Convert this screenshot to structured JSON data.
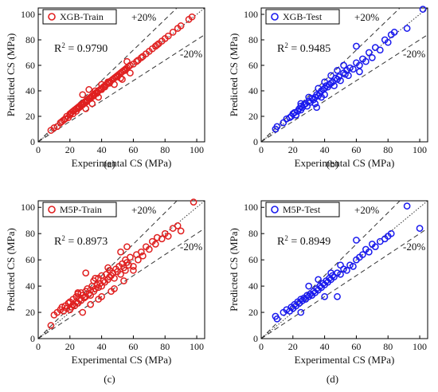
{
  "figure": {
    "panels": [
      {
        "id": "a",
        "caption": "(a)",
        "legend": "XGB-Train",
        "color": "#e02020",
        "r2": {
          "prefix": "R",
          "sup": "2",
          "value": " = 0.9790"
        },
        "band_upper": "+20%",
        "band_lower": "-20%"
      },
      {
        "id": "b",
        "caption": "(b)",
        "legend": "XGB-Test",
        "color": "#1a1aee",
        "r2": {
          "prefix": "R",
          "sup": "2",
          "value": " = 0.9485"
        },
        "band_upper": "+20%",
        "band_lower": "-20%"
      },
      {
        "id": "c",
        "caption": "(c)",
        "legend": "M5P-Train",
        "color": "#e02020",
        "r2": {
          "prefix": "R",
          "sup": "2",
          "value": " = 0.8973"
        },
        "band_upper": "+20%",
        "band_lower": "-20%"
      },
      {
        "id": "d",
        "caption": "(d)",
        "legend": "M5P-Test",
        "color": "#1a1aee",
        "r2": {
          "prefix": "R",
          "sup": "2",
          "value": " = 0.8949"
        },
        "band_upper": "+20%",
        "band_lower": "-20%"
      }
    ]
  },
  "chart_data": [
    {
      "type": "scatter",
      "title": "",
      "xlabel": "Experimental CS (MPa)",
      "ylabel": "Predicted CS (MPa)",
      "xlim": [
        0,
        105
      ],
      "ylim": [
        0,
        105
      ],
      "xticks": [
        0,
        20,
        40,
        60,
        80,
        100
      ],
      "yticks": [
        0,
        20,
        40,
        60,
        80,
        100
      ],
      "series": [
        {
          "name": "XGB-Train",
          "color": "#e02020",
          "x": [
            8,
            10,
            12,
            14,
            15,
            16,
            17,
            18,
            19,
            20,
            20,
            21,
            22,
            22,
            23,
            24,
            24,
            25,
            25,
            26,
            26,
            27,
            28,
            28,
            29,
            30,
            30,
            31,
            31,
            32,
            33,
            33,
            34,
            35,
            35,
            36,
            37,
            37,
            38,
            39,
            40,
            40,
            41,
            42,
            42,
            43,
            44,
            45,
            45,
            46,
            47,
            48,
            49,
            50,
            50,
            51,
            52,
            53,
            54,
            55,
            55,
            56,
            57,
            58,
            60,
            62,
            63,
            65,
            66,
            68,
            70,
            72,
            74,
            75,
            76,
            78,
            80,
            82,
            85,
            88,
            90,
            95,
            97,
            28,
            32,
            36,
            40,
            44,
            52,
            56,
            30,
            34,
            38,
            48,
            53,
            58
          ],
          "y": [
            9,
            11,
            12,
            15,
            16,
            17,
            18,
            20,
            19,
            22,
            21,
            23,
            24,
            22,
            25,
            26,
            24,
            27,
            26,
            28,
            27,
            29,
            30,
            29,
            31,
            32,
            31,
            33,
            32,
            34,
            35,
            34,
            36,
            37,
            36,
            38,
            39,
            38,
            40,
            41,
            42,
            41,
            43,
            44,
            43,
            45,
            46,
            47,
            46,
            48,
            49,
            50,
            51,
            52,
            51,
            53,
            54,
            55,
            56,
            57,
            56,
            58,
            59,
            60,
            61,
            63,
            64,
            66,
            67,
            69,
            71,
            73,
            75,
            76,
            77,
            79,
            81,
            83,
            86,
            89,
            91,
            96,
            98,
            37,
            41,
            40,
            45,
            47,
            50,
            63,
            26,
            30,
            35,
            45,
            49,
            54
          ]
        }
      ],
      "reference_lines": [
        "y = x",
        "y = 1.2x",
        "y = 0.8x"
      ],
      "legend": "top-left",
      "grid": false
    },
    {
      "type": "scatter",
      "title": "",
      "xlabel": "Experimental CS (MPa)",
      "ylabel": "Predicted CS (MPa)",
      "xlim": [
        0,
        105
      ],
      "ylim": [
        0,
        105
      ],
      "xticks": [
        0,
        20,
        40,
        60,
        80,
        100
      ],
      "yticks": [
        0,
        20,
        40,
        60,
        80,
        100
      ],
      "series": [
        {
          "name": "XGB-Test",
          "color": "#1a1aee",
          "x": [
            9,
            10,
            14,
            16,
            18,
            19,
            20,
            21,
            22,
            23,
            24,
            25,
            25,
            26,
            27,
            28,
            29,
            30,
            31,
            32,
            33,
            34,
            34,
            35,
            36,
            37,
            38,
            38,
            39,
            40,
            40,
            41,
            42,
            43,
            44,
            45,
            46,
            47,
            48,
            49,
            50,
            52,
            53,
            54,
            55,
            56,
            58,
            60,
            62,
            64,
            66,
            68,
            70,
            72,
            75,
            78,
            80,
            82,
            84,
            92,
            102,
            30,
            36,
            44,
            52,
            60,
            40,
            48,
            25,
            35,
            62
          ],
          "y": [
            10,
            12,
            15,
            18,
            19,
            20,
            22,
            23,
            21,
            24,
            26,
            25,
            28,
            27,
            29,
            30,
            28,
            32,
            31,
            34,
            33,
            35,
            30,
            37,
            36,
            38,
            40,
            35,
            41,
            42,
            37,
            44,
            43,
            45,
            46,
            47,
            44,
            50,
            49,
            51,
            48,
            54,
            53,
            56,
            52,
            58,
            57,
            62,
            60,
            65,
            63,
            70,
            66,
            74,
            72,
            80,
            78,
            84,
            86,
            89,
            104,
            35,
            42,
            52,
            60,
            75,
            47,
            56,
            30,
            27,
            55
          ]
        }
      ],
      "reference_lines": [
        "y = x",
        "y = 1.2x",
        "y = 0.8x"
      ],
      "legend": "top-left",
      "grid": false
    },
    {
      "type": "scatter",
      "title": "",
      "xlabel": "Experimental CS (MPa)",
      "ylabel": "Predicted CS (MPa)",
      "xlim": [
        0,
        105
      ],
      "ylim": [
        0,
        105
      ],
      "xticks": [
        0,
        20,
        40,
        60,
        80,
        100
      ],
      "yticks": [
        0,
        20,
        40,
        60,
        80,
        100
      ],
      "series": [
        {
          "name": "M5P-Train",
          "color": "#e02020",
          "x": [
            8,
            10,
            12,
            14,
            15,
            16,
            17,
            18,
            19,
            20,
            20,
            21,
            22,
            22,
            23,
            24,
            24,
            25,
            25,
            26,
            27,
            27,
            28,
            29,
            30,
            30,
            31,
            32,
            33,
            33,
            34,
            35,
            35,
            36,
            37,
            38,
            38,
            39,
            40,
            40,
            41,
            42,
            43,
            44,
            45,
            45,
            46,
            47,
            48,
            49,
            50,
            51,
            52,
            53,
            54,
            55,
            55,
            56,
            57,
            58,
            60,
            62,
            63,
            65,
            66,
            68,
            70,
            72,
            74,
            75,
            78,
            80,
            82,
            85,
            88,
            90,
            98,
            30,
            36,
            44,
            52,
            56,
            28,
            33,
            40,
            48,
            54,
            60,
            25,
            38,
            46
          ],
          "y": [
            10,
            18,
            20,
            22,
            24,
            21,
            25,
            23,
            27,
            22,
            28,
            24,
            30,
            26,
            25,
            32,
            28,
            27,
            34,
            30,
            29,
            35,
            33,
            31,
            36,
            32,
            38,
            34,
            37,
            33,
            40,
            36,
            44,
            38,
            41,
            39,
            46,
            42,
            40,
            48,
            44,
            43,
            49,
            45,
            47,
            52,
            48,
            50,
            46,
            53,
            51,
            55,
            49,
            57,
            54,
            52,
            60,
            58,
            56,
            62,
            55,
            64,
            60,
            66,
            63,
            70,
            68,
            74,
            72,
            77,
            76,
            80,
            78,
            84,
            86,
            82,
            104,
            50,
            46,
            54,
            66,
            70,
            20,
            26,
            32,
            38,
            44,
            52,
            35,
            30,
            36
          ]
        }
      ],
      "reference_lines": [
        "y = x",
        "y = 1.2x",
        "y = 0.8x"
      ],
      "legend": "top-left",
      "grid": false
    },
    {
      "type": "scatter",
      "title": "",
      "xlabel": "Experimental CS (MPa)",
      "ylabel": "Predicted CS (MPa)",
      "xlim": [
        0,
        105
      ],
      "ylim": [
        0,
        105
      ],
      "xticks": [
        0,
        20,
        40,
        60,
        80,
        100
      ],
      "yticks": [
        0,
        20,
        40,
        60,
        80,
        100
      ],
      "series": [
        {
          "name": "M5P-Test",
          "color": "#1a1aee",
          "x": [
            9,
            10,
            14,
            16,
            18,
            19,
            20,
            21,
            22,
            23,
            24,
            25,
            26,
            27,
            28,
            29,
            30,
            31,
            32,
            33,
            34,
            35,
            36,
            37,
            38,
            39,
            40,
            41,
            42,
            43,
            44,
            45,
            46,
            48,
            50,
            52,
            54,
            56,
            58,
            60,
            62,
            64,
            66,
            68,
            70,
            72,
            75,
            78,
            80,
            82,
            92,
            100,
            30,
            36,
            44,
            50,
            60,
            40,
            25,
            48
          ],
          "y": [
            17,
            15,
            20,
            22,
            21,
            24,
            23,
            26,
            25,
            28,
            27,
            30,
            29,
            31,
            30,
            33,
            32,
            34,
            33,
            36,
            35,
            38,
            37,
            40,
            39,
            42,
            41,
            44,
            43,
            46,
            45,
            48,
            47,
            50,
            49,
            53,
            52,
            56,
            55,
            60,
            62,
            64,
            68,
            66,
            72,
            70,
            74,
            76,
            78,
            80,
            101,
            84,
            40,
            45,
            50,
            56,
            75,
            32,
            20,
            32
          ]
        }
      ],
      "reference_lines": [
        "y = x",
        "y = 1.2x",
        "y = 0.8x"
      ],
      "legend": "top-left",
      "grid": false
    }
  ]
}
